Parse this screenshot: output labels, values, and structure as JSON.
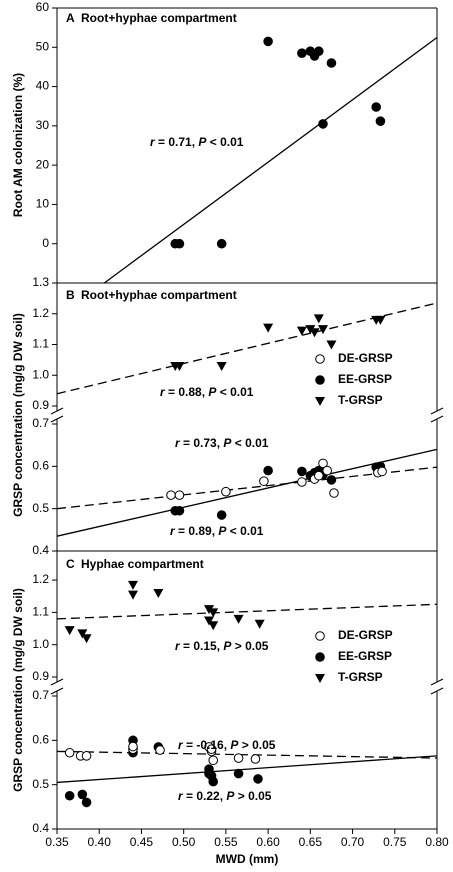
{
  "chart_data": [
    {
      "type": "scatter",
      "label": "A",
      "title": "Root+hyphae compartment",
      "ylabel": "Root AM colonization (%)",
      "xlim": [
        0.35,
        0.8
      ],
      "axes": [
        {
          "ylim": [
            -10,
            60
          ],
          "yticks": [
            0,
            10,
            20,
            30,
            40,
            50,
            60
          ],
          "series": [
            {
              "color": "#000000",
              "marker": "circle",
              "x": [
                0.49,
                0.495,
                0.545,
                0.6,
                0.64,
                0.65,
                0.655,
                0.66,
                0.675,
                0.665,
                0.728,
                0.733
              ],
              "values": [
                0,
                0,
                0,
                51.5,
                48.5,
                49,
                47.8,
                49,
                46,
                30.5,
                34.8,
                31.2
              ]
            }
          ],
          "fit_lines": [
            {
              "dashed": false,
              "x": [
                0.406,
                0.8
              ],
              "y": [
                -10,
                52.5
              ]
            }
          ]
        }
      ],
      "annotations": [
        [
          "r",
          " = 0.71, ",
          "P",
          " < 0.01"
        ]
      ]
    },
    {
      "type": "scatter",
      "label": "B",
      "title": "Root+hyphae compartment",
      "ylabel": "GRSP concentration (mg/g DW soil)",
      "xlim": [
        0.35,
        0.8
      ],
      "legend": "right",
      "axes": [
        {
          "ylim": [
            0.9,
            1.3
          ],
          "yticks": [
            0.9,
            {
              "value": 1.0,
              "label": "1.0"
            },
            1.1,
            1.2,
            1.3
          ],
          "series": [
            {
              "name": "T-GRSP",
              "color": "#000000",
              "marker": "triangle-down",
              "x": [
                0.49,
                0.495,
                0.545,
                0.6,
                0.64,
                0.65,
                0.655,
                0.66,
                0.675,
                0.665,
                0.728,
                0.733
              ],
              "values": [
                1.03,
                1.03,
                1.03,
                1.155,
                1.145,
                1.15,
                1.14,
                1.185,
                1.1,
                1.15,
                1.18,
                1.18
              ]
            }
          ],
          "fit_lines": [
            {
              "dashed": true,
              "x": [
                0.35,
                0.8
              ],
              "y": [
                0.94,
                1.235
              ]
            }
          ]
        },
        {
          "ylim": [
            0.4,
            0.7
          ],
          "yticks": [
            0.4,
            0.5,
            0.6,
            0.7
          ],
          "series": [
            {
              "name": "EE-GRSP",
              "color": "#000000",
              "marker": "circle",
              "x": [
                0.49,
                0.495,
                0.545,
                0.6,
                0.64,
                0.65,
                0.655,
                0.66,
                0.675,
                0.665,
                0.728,
                0.733
              ],
              "values": [
                0.495,
                0.495,
                0.485,
                0.59,
                0.588,
                0.578,
                0.585,
                0.59,
                0.568,
                0.58,
                0.598,
                0.6
              ]
            },
            {
              "name": "DE-GRSP",
              "color": "#000000",
              "marker": "open-circle",
              "x": [
                0.485,
                0.495,
                0.55,
                0.595,
                0.64,
                0.655,
                0.66,
                0.665,
                0.67,
                0.678,
                0.73,
                0.735
              ],
              "values": [
                0.532,
                0.532,
                0.54,
                0.565,
                0.563,
                0.57,
                0.578,
                0.607,
                0.59,
                0.537,
                0.585,
                0.588
              ]
            }
          ],
          "fit_lines": [
            {
              "dashed": false,
              "x": [
                0.35,
                0.8
              ],
              "y": [
                0.435,
                0.64
              ]
            },
            {
              "dashed": true,
              "x": [
                0.35,
                0.8
              ],
              "y": [
                0.5,
                0.598
              ]
            }
          ]
        }
      ],
      "annotations": [
        [
          "r",
          " = 0.88, ",
          "P",
          " < 0.01"
        ],
        [
          "r",
          " = 0.73, ",
          "P",
          " < 0.01"
        ],
        [
          "r",
          " = 0.89, ",
          "P",
          " < 0.01"
        ]
      ]
    },
    {
      "type": "scatter",
      "label": "C",
      "title": "Hyphae compartment",
      "ylabel": "GRSP concentration (mg/g DW soil)",
      "xlabel": "MWD (mm)",
      "xlim": [
        0.35,
        0.8
      ],
      "xticks": [
        0.35,
        {
          "value": 0.4,
          "label": "0.40"
        },
        0.45,
        {
          "value": 0.5,
          "label": "0.50"
        },
        0.55,
        {
          "value": 0.6,
          "label": "0.60"
        },
        0.65,
        {
          "value": 0.7,
          "label": "0.70"
        },
        0.75,
        {
          "value": 0.8,
          "label": "0.80"
        }
      ],
      "legend": "right",
      "axes": [
        {
          "ylim": [
            0.9,
            1.29
          ],
          "yticks": [
            0.9,
            {
              "value": 1.0,
              "label": "1.0"
            },
            1.1,
            1.2
          ],
          "series": [
            {
              "name": "T-GRSP",
              "color": "#000000",
              "marker": "triangle-down",
              "x": [
                0.365,
                0.38,
                0.385,
                0.44,
                0.44,
                0.47,
                0.53,
                0.535,
                0.53,
                0.535,
                0.565,
                0.59
              ],
              "values": [
                1.045,
                1.035,
                1.02,
                1.185,
                1.155,
                1.16,
                1.11,
                1.1,
                1.075,
                1.06,
                1.08,
                1.065
              ]
            }
          ],
          "fit_lines": [
            {
              "dashed": true,
              "x": [
                0.35,
                0.8
              ],
              "y": [
                1.08,
                1.125
              ]
            }
          ]
        },
        {
          "ylim": [
            0.4,
            0.7
          ],
          "yticks": [
            0.4,
            0.5,
            0.6,
            0.7
          ],
          "series": [
            {
              "name": "EE-GRSP",
              "color": "#000000",
              "marker": "circle",
              "x": [
                0.365,
                0.38,
                0.385,
                0.44,
                0.44,
                0.47,
                0.53,
                0.533,
                0.535,
                0.53,
                0.565,
                0.588
              ],
              "values": [
                0.475,
                0.478,
                0.46,
                0.6,
                0.572,
                0.585,
                0.535,
                0.52,
                0.507,
                0.525,
                0.525,
                0.513
              ]
            },
            {
              "name": "DE-GRSP",
              "color": "#000000",
              "marker": "open-circle",
              "x": [
                0.365,
                0.378,
                0.385,
                0.44,
                0.44,
                0.472,
                0.53,
                0.533,
                0.535,
                0.565,
                0.585,
                0.533
              ],
              "values": [
                0.572,
                0.565,
                0.565,
                0.58,
                0.586,
                0.578,
                0.585,
                0.575,
                0.555,
                0.56,
                0.558,
                0.58
              ]
            }
          ],
          "fit_lines": [
            {
              "dashed": false,
              "x": [
                0.35,
                0.8
              ],
              "y": [
                0.505,
                0.565
              ]
            },
            {
              "dashed": true,
              "x": [
                0.35,
                0.8
              ],
              "y": [
                0.575,
                0.56
              ]
            }
          ]
        }
      ],
      "annotations": [
        [
          "r",
          " = 0.15, ",
          "P",
          " > 0.05"
        ],
        [
          "r",
          " = -0.16, ",
          "P",
          " > 0.05"
        ],
        [
          "r",
          " = 0.22, ",
          "P",
          " > 0.05"
        ]
      ]
    }
  ]
}
